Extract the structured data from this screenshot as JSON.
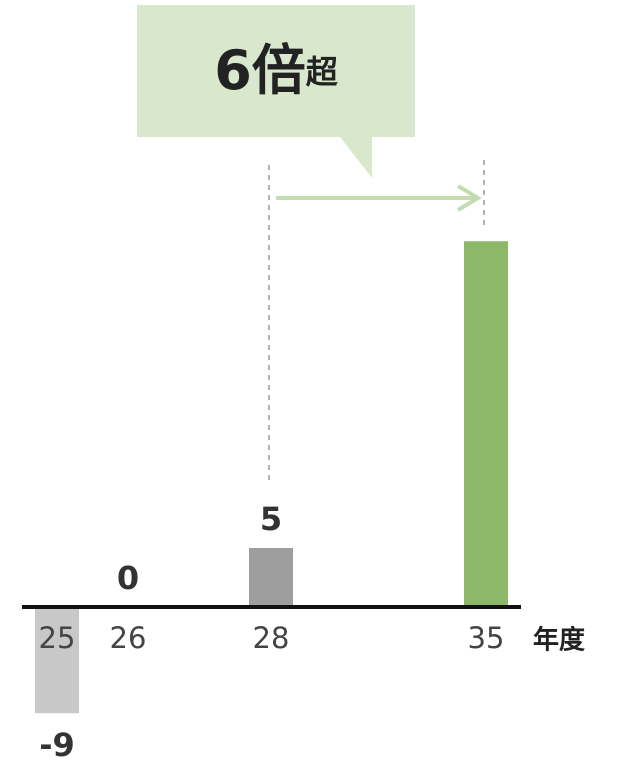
{
  "chart_data": {
    "type": "bar",
    "categories": [
      "25",
      "26",
      "28",
      "35"
    ],
    "x_label": "年度",
    "values": [
      -9,
      0,
      5,
      31
    ],
    "value_labels": [
      "-9",
      "0",
      "5",
      null
    ],
    "colors": [
      "#c8c8c8",
      "#9e9e9e",
      "#9e9e9e",
      "#8db86a"
    ],
    "annotation": {
      "main": "6倍",
      "suffix": "超"
    }
  }
}
